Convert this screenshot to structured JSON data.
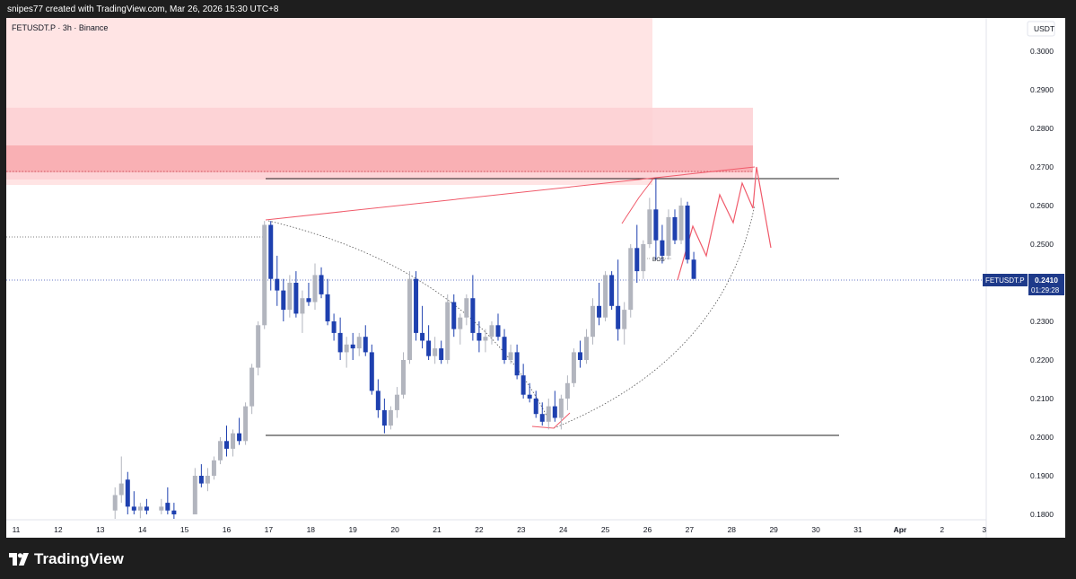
{
  "header": {
    "created_by": "snipes77 created with TradingView.com, Mar 26, 2026 15:30 UTC+8"
  },
  "footer": {
    "brand": "TradingView",
    "logo_icon": "tradingview-logo-icon"
  },
  "chart_data": {
    "type": "candlestick",
    "symbol_info": "FETUSDT.P · 3h · Binance",
    "currency": "USDT",
    "price_ticks": [
      "0.3000",
      "0.2900",
      "0.2800",
      "0.2700",
      "0.2600",
      "0.2500",
      "0.2400",
      "0.2300",
      "0.2200",
      "0.2100",
      "0.2000",
      "0.1900",
      "0.1800"
    ],
    "date_ticks": [
      "11",
      "12",
      "13",
      "14",
      "15",
      "16",
      "17",
      "18",
      "19",
      "20",
      "21",
      "22",
      "23",
      "24",
      "25",
      "26",
      "27",
      "28",
      "29",
      "30",
      "31",
      "Apr",
      "2",
      "3"
    ],
    "current_price": {
      "symbol": "FETUSDT.P",
      "price": "0.2410",
      "countdown": "01:29:28"
    },
    "colors": {
      "up": "#b2b5be",
      "down": "#1e40af",
      "zone_light": "#ffe4e4",
      "zone_mid": "#fdd0d3",
      "zone_dark": "#f8a9ae",
      "projection": "#f05a6a",
      "price_label_bg": "#1e3a8a"
    },
    "annotations": {
      "bos_label": "BOS",
      "resistance_level": 0.2672,
      "support_level": 0.2008
    },
    "candles": [
      [
        13.35,
        0.181,
        0.187,
        0.178,
        0.185
      ],
      [
        13.5,
        0.185,
        0.195,
        0.183,
        0.188
      ],
      [
        13.65,
        0.189,
        0.191,
        0.18,
        0.182
      ],
      [
        13.8,
        0.182,
        0.186,
        0.18,
        0.181
      ],
      [
        13.95,
        0.181,
        0.183,
        0.179,
        0.182
      ],
      [
        14.1,
        0.182,
        0.184,
        0.18,
        0.181
      ],
      [
        14.45,
        0.181,
        0.184,
        0.18,
        0.182
      ],
      [
        14.6,
        0.183,
        0.187,
        0.18,
        0.181
      ],
      [
        14.75,
        0.181,
        0.183,
        0.178,
        0.18
      ],
      [
        15.25,
        0.18,
        0.192,
        0.18,
        0.19
      ],
      [
        15.4,
        0.19,
        0.193,
        0.187,
        0.188
      ],
      [
        15.55,
        0.188,
        0.192,
        0.186,
        0.19
      ],
      [
        15.7,
        0.19,
        0.195,
        0.189,
        0.194
      ],
      [
        15.85,
        0.194,
        0.2,
        0.193,
        0.199
      ],
      [
        16.0,
        0.199,
        0.203,
        0.195,
        0.197
      ],
      [
        16.15,
        0.197,
        0.202,
        0.195,
        0.201
      ],
      [
        16.3,
        0.201,
        0.205,
        0.198,
        0.199
      ],
      [
        16.45,
        0.199,
        0.209,
        0.198,
        0.208
      ],
      [
        16.6,
        0.208,
        0.219,
        0.206,
        0.218
      ],
      [
        16.75,
        0.218,
        0.23,
        0.216,
        0.229
      ],
      [
        16.9,
        0.229,
        0.256,
        0.228,
        0.255
      ],
      [
        17.05,
        0.255,
        0.256,
        0.238,
        0.241
      ],
      [
        17.2,
        0.241,
        0.247,
        0.234,
        0.238
      ],
      [
        17.35,
        0.238,
        0.241,
        0.23,
        0.233
      ],
      [
        17.5,
        0.233,
        0.242,
        0.231,
        0.24
      ],
      [
        17.65,
        0.24,
        0.243,
        0.231,
        0.232
      ],
      [
        17.8,
        0.232,
        0.238,
        0.227,
        0.236
      ],
      [
        17.95,
        0.236,
        0.24,
        0.234,
        0.235
      ],
      [
        18.1,
        0.235,
        0.245,
        0.233,
        0.242
      ],
      [
        18.25,
        0.242,
        0.244,
        0.236,
        0.237
      ],
      [
        18.4,
        0.237,
        0.241,
        0.229,
        0.23
      ],
      [
        18.55,
        0.23,
        0.232,
        0.225,
        0.227
      ],
      [
        18.7,
        0.227,
        0.231,
        0.22,
        0.222
      ],
      [
        18.85,
        0.222,
        0.226,
        0.218,
        0.224
      ],
      [
        19.0,
        0.224,
        0.227,
        0.22,
        0.223
      ],
      [
        19.15,
        0.223,
        0.227,
        0.221,
        0.226
      ],
      [
        19.3,
        0.226,
        0.229,
        0.221,
        0.222
      ],
      [
        19.45,
        0.222,
        0.224,
        0.211,
        0.212
      ],
      [
        19.6,
        0.212,
        0.215,
        0.205,
        0.207
      ],
      [
        19.75,
        0.207,
        0.21,
        0.201,
        0.203
      ],
      [
        19.9,
        0.203,
        0.208,
        0.202,
        0.207
      ],
      [
        20.05,
        0.207,
        0.213,
        0.205,
        0.211
      ],
      [
        20.2,
        0.211,
        0.222,
        0.21,
        0.22
      ],
      [
        20.35,
        0.22,
        0.243,
        0.219,
        0.241
      ],
      [
        20.5,
        0.241,
        0.243,
        0.225,
        0.227
      ],
      [
        20.65,
        0.227,
        0.234,
        0.223,
        0.225
      ],
      [
        20.8,
        0.225,
        0.229,
        0.22,
        0.221
      ],
      [
        20.95,
        0.221,
        0.226,
        0.219,
        0.223
      ],
      [
        21.1,
        0.223,
        0.225,
        0.219,
        0.22
      ],
      [
        21.25,
        0.22,
        0.237,
        0.219,
        0.235
      ],
      [
        21.4,
        0.235,
        0.237,
        0.226,
        0.228
      ],
      [
        21.55,
        0.228,
        0.232,
        0.224,
        0.231
      ],
      [
        21.7,
        0.231,
        0.237,
        0.229,
        0.236
      ],
      [
        21.85,
        0.236,
        0.242,
        0.225,
        0.227
      ],
      [
        22.0,
        0.227,
        0.23,
        0.222,
        0.225
      ],
      [
        22.15,
        0.225,
        0.228,
        0.222,
        0.226
      ],
      [
        22.3,
        0.226,
        0.23,
        0.224,
        0.229
      ],
      [
        22.45,
        0.229,
        0.232,
        0.225,
        0.226
      ],
      [
        22.6,
        0.226,
        0.228,
        0.219,
        0.22
      ],
      [
        22.75,
        0.22,
        0.224,
        0.219,
        0.222
      ],
      [
        22.9,
        0.222,
        0.224,
        0.215,
        0.216
      ],
      [
        23.05,
        0.216,
        0.219,
        0.21,
        0.211
      ],
      [
        23.2,
        0.211,
        0.214,
        0.209,
        0.21
      ],
      [
        23.35,
        0.21,
        0.212,
        0.205,
        0.206
      ],
      [
        23.5,
        0.206,
        0.209,
        0.203,
        0.204
      ],
      [
        23.65,
        0.204,
        0.21,
        0.202,
        0.208
      ],
      [
        23.8,
        0.208,
        0.212,
        0.204,
        0.205
      ],
      [
        23.95,
        0.205,
        0.211,
        0.202,
        0.21
      ],
      [
        24.1,
        0.21,
        0.216,
        0.207,
        0.214
      ],
      [
        24.25,
        0.214,
        0.223,
        0.213,
        0.222
      ],
      [
        24.4,
        0.222,
        0.225,
        0.218,
        0.22
      ],
      [
        24.55,
        0.22,
        0.228,
        0.219,
        0.226
      ],
      [
        24.7,
        0.226,
        0.236,
        0.224,
        0.234
      ],
      [
        24.85,
        0.234,
        0.24,
        0.229,
        0.231
      ],
      [
        25.0,
        0.231,
        0.243,
        0.23,
        0.242
      ],
      [
        25.15,
        0.242,
        0.243,
        0.233,
        0.234
      ],
      [
        25.3,
        0.234,
        0.246,
        0.225,
        0.228
      ],
      [
        25.45,
        0.228,
        0.235,
        0.224,
        0.233
      ],
      [
        25.6,
        0.233,
        0.25,
        0.231,
        0.249
      ],
      [
        25.75,
        0.249,
        0.255,
        0.24,
        0.243
      ],
      [
        25.9,
        0.243,
        0.251,
        0.241,
        0.25
      ],
      [
        26.05,
        0.25,
        0.262,
        0.249,
        0.259
      ],
      [
        26.2,
        0.259,
        0.267,
        0.246,
        0.251
      ],
      [
        26.35,
        0.251,
        0.255,
        0.245,
        0.247
      ],
      [
        26.5,
        0.247,
        0.259,
        0.246,
        0.257
      ],
      [
        26.65,
        0.257,
        0.259,
        0.25,
        0.251
      ],
      [
        26.8,
        0.251,
        0.262,
        0.25,
        0.26
      ],
      [
        26.95,
        0.26,
        0.261,
        0.245,
        0.246
      ],
      [
        27.1,
        0.246,
        0.248,
        0.241,
        0.241
      ]
    ]
  }
}
